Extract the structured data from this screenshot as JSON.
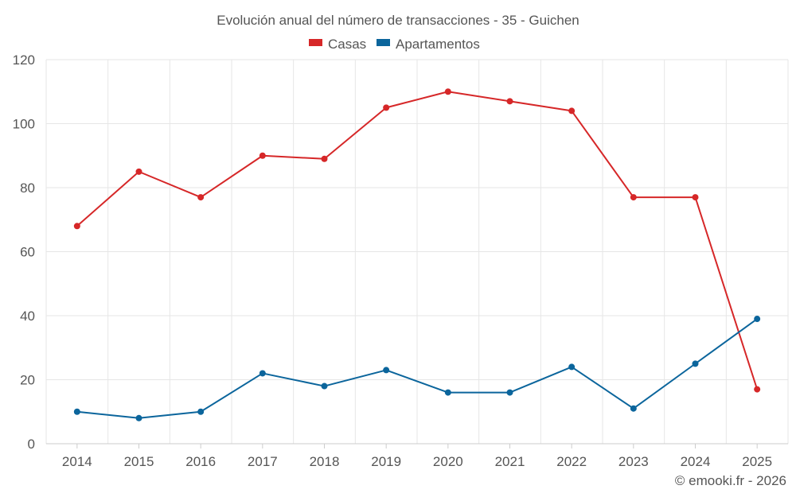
{
  "chart_data": {
    "type": "line",
    "title": "Evolución anual del número de transacciones - 35 - Guichen",
    "categories": [
      "2014",
      "2015",
      "2016",
      "2017",
      "2018",
      "2019",
      "2020",
      "2021",
      "2022",
      "2023",
      "2024",
      "2025"
    ],
    "series": [
      {
        "name": "Casas",
        "color": "#d62728",
        "values": [
          68,
          85,
          77,
          90,
          89,
          105,
          110,
          107,
          104,
          77,
          77,
          17
        ]
      },
      {
        "name": "Apartamentos",
        "color": "#0b659c",
        "values": [
          10,
          8,
          10,
          22,
          18,
          23,
          16,
          16,
          24,
          11,
          25,
          39
        ]
      }
    ],
    "ylim": [
      0,
      120
    ],
    "yticks": [
      "0",
      "20",
      "40",
      "60",
      "80",
      "100",
      "120"
    ],
    "grid": true,
    "legend_position": "top-center",
    "xlabel": "",
    "ylabel": ""
  },
  "credit": "© emooki.fr - 2026"
}
